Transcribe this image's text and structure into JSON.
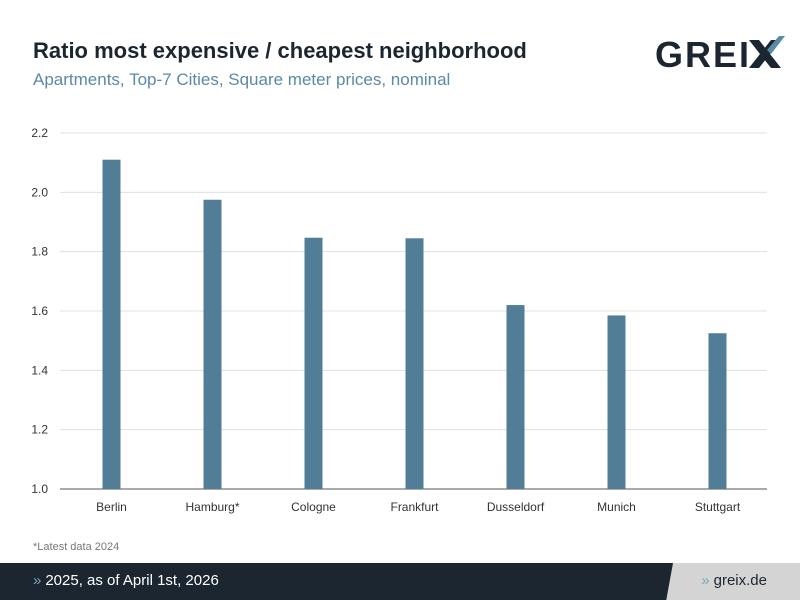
{
  "header": {
    "title": "Ratio most expensive / cheapest neighborhood",
    "subtitle": "Apartments, Top-7 Cities, Square meter prices, nominal",
    "logo_text": "GREIX"
  },
  "footnote": "*Latest data 2024",
  "footer": {
    "arrow": "»",
    "left_text": "2025, as of April 1st, 2026",
    "right_text": "greix.de"
  },
  "colors": {
    "bar": "#517d96",
    "title": "#1c2630",
    "subtitle": "#5a8aa6",
    "footer": "#1c2630"
  },
  "chart_data": {
    "type": "bar",
    "categories": [
      "Berlin",
      "Hamburg*",
      "Cologne",
      "Frankfurt",
      "Dusseldorf",
      "Munich",
      "Stuttgart"
    ],
    "values": [
      2.11,
      1.975,
      1.847,
      1.845,
      1.62,
      1.585,
      1.525
    ],
    "ylim": [
      1.0,
      2.2
    ],
    "yticks": [
      "1.0",
      "1.2",
      "1.4",
      "1.6",
      "1.8",
      "2.0",
      "2.2"
    ],
    "grid": true,
    "xlabel": "",
    "ylabel": ""
  }
}
